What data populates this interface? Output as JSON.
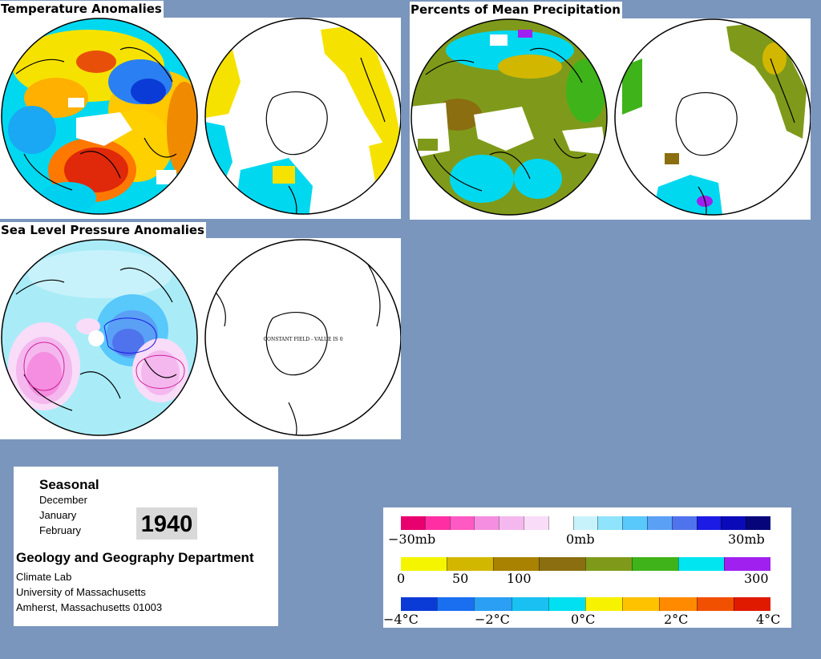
{
  "titles": {
    "temperature": "Temperature Anomalies",
    "precipitation": "Percents of Mean Precipitation",
    "pressure": "Sea Level Pressure Anomalies"
  },
  "map_note": "CONSTANT FIELD - VALUE IS 0",
  "info": {
    "seasonal": "Seasonal",
    "months": [
      "December",
      "January",
      "February"
    ],
    "year": "1940",
    "department": "Geology and Geography Department",
    "lines": [
      "Climate Lab",
      "University of Massachusetts",
      "Amherst, Massachusetts 01003"
    ]
  },
  "legends": {
    "pressure": {
      "labels": [
        "−30mb",
        "0mb",
        "30mb"
      ],
      "colors": [
        "#e8006e",
        "#ff2fa3",
        "#ff59c3",
        "#f58ee0",
        "#f4b8ee",
        "#f9dcf8",
        "#ffffff",
        "#c8f2fb",
        "#8fe3fb",
        "#59c8fb",
        "#5aa0f5",
        "#4f73ec",
        "#1b1be3",
        "#0a0ab8",
        "#06067a"
      ]
    },
    "precipitation": {
      "labels": [
        "0",
        "50",
        "100",
        "300"
      ],
      "colors": [
        "#f5f500",
        "#d2b700",
        "#a88200",
        "#8a6e10",
        "#7f9a1a",
        "#3fb31a",
        "#00e5f0",
        "#a020f0"
      ]
    },
    "temperature": {
      "labels": [
        "−4°C",
        "−2°C",
        "0°C",
        "2°C",
        "4°C"
      ],
      "colors": [
        "#0b3bd6",
        "#1a6ff0",
        "#2a9ff4",
        "#1ac0f2",
        "#00e0f0",
        "#f6f200",
        "#ffc200",
        "#ff8a00",
        "#f05000",
        "#e01a00"
      ]
    }
  }
}
